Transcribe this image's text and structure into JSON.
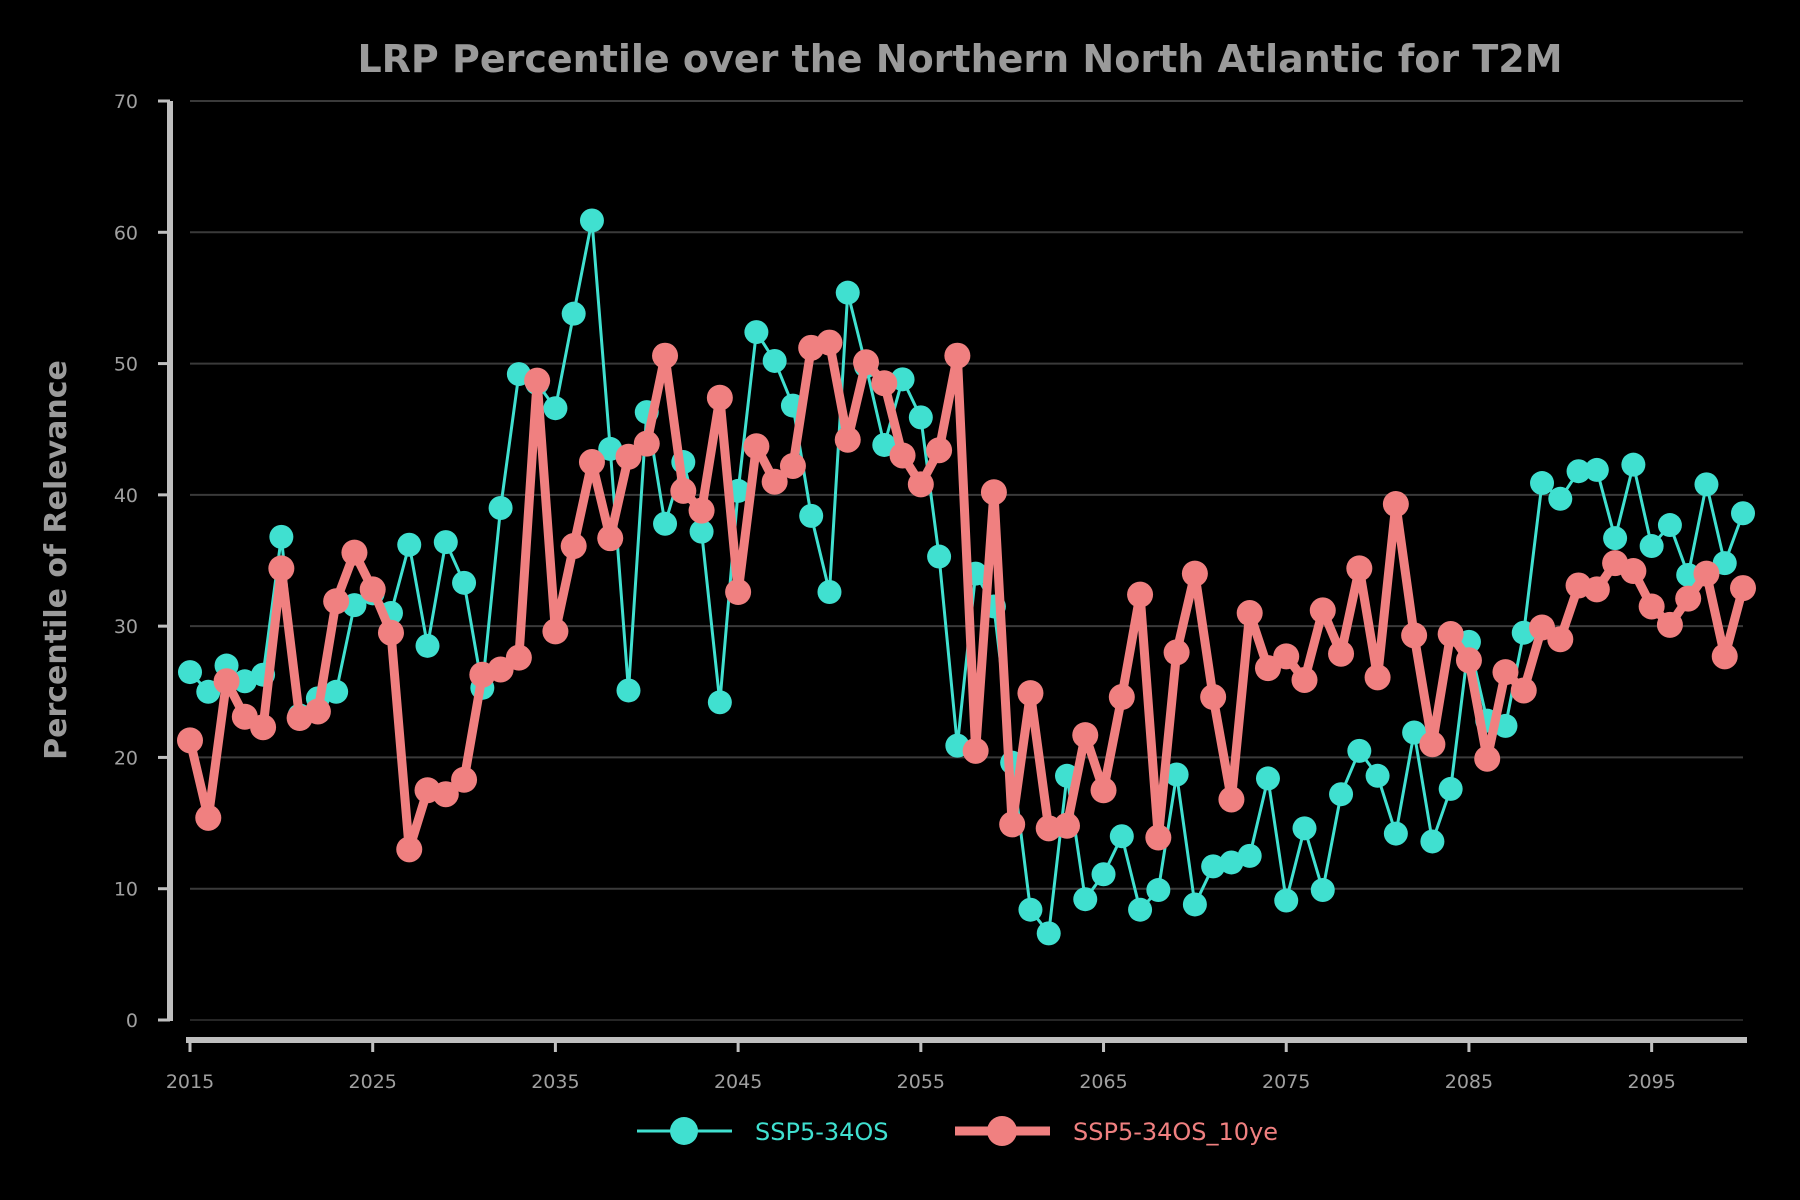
{
  "chart_data": {
    "type": "line",
    "title": "LRP Percentile over the Northern North Atlantic for T2M",
    "xlabel": "",
    "ylabel": "Percentile of Relevance",
    "xlim": [
      2015,
      2100
    ],
    "ylim": [
      0,
      70
    ],
    "x_ticks": [
      2015,
      2025,
      2035,
      2045,
      2055,
      2065,
      2075,
      2085,
      2095
    ],
    "y_ticks": [
      0,
      10,
      20,
      30,
      40,
      50,
      60,
      70
    ],
    "grid": "horizontal",
    "legend_position": "bottom-center",
    "x": [
      2015,
      2016,
      2017,
      2018,
      2019,
      2020,
      2021,
      2022,
      2023,
      2024,
      2025,
      2026,
      2027,
      2028,
      2029,
      2030,
      2031,
      2032,
      2033,
      2034,
      2035,
      2036,
      2037,
      2038,
      2039,
      2040,
      2041,
      2042,
      2043,
      2044,
      2045,
      2046,
      2047,
      2048,
      2049,
      2050,
      2051,
      2052,
      2053,
      2054,
      2055,
      2056,
      2057,
      2058,
      2059,
      2060,
      2061,
      2062,
      2063,
      2064,
      2065,
      2066,
      2067,
      2068,
      2069,
      2070,
      2071,
      2072,
      2073,
      2074,
      2075,
      2076,
      2077,
      2078,
      2079,
      2080,
      2081,
      2082,
      2083,
      2084,
      2085,
      2086,
      2087,
      2088,
      2089,
      2090,
      2091,
      2092,
      2093,
      2094,
      2095,
      2096,
      2097,
      2098,
      2099,
      2100
    ],
    "series": [
      {
        "name": "SSP5-34OS",
        "color": "#40e0d0",
        "values": [
          26.5,
          25.0,
          27.0,
          25.8,
          26.3,
          36.8,
          23.2,
          24.5,
          25.0,
          31.6,
          32.5,
          31.0,
          36.2,
          28.5,
          36.4,
          33.3,
          25.3,
          39.0,
          49.2,
          48.5,
          46.6,
          53.8,
          60.9,
          43.5,
          25.1,
          46.3,
          37.8,
          42.5,
          37.2,
          24.2,
          40.3,
          52.4,
          50.2,
          46.8,
          38.4,
          32.6,
          55.4,
          49.8,
          43.8,
          48.8,
          45.9,
          35.3,
          20.9,
          34.0,
          31.5,
          19.6,
          8.4,
          6.6,
          18.6,
          9.2,
          11.1,
          14.0,
          8.4,
          9.9,
          18.7,
          8.8,
          11.7,
          12.0,
          12.5,
          18.4,
          9.1,
          14.6,
          9.9,
          17.2,
          20.5,
          18.6,
          14.2,
          21.9,
          13.6,
          17.6,
          28.8,
          22.8,
          22.4,
          29.5,
          40.9,
          39.7,
          41.8,
          41.9,
          36.7,
          42.3,
          36.1,
          37.7,
          33.9,
          40.8,
          34.8,
          38.6
        ]
      },
      {
        "name": "SSP5-34OS_10ye",
        "color": "#f08080",
        "values": [
          21.3,
          15.4,
          25.8,
          23.1,
          22.3,
          34.4,
          23.0,
          23.5,
          31.9,
          35.6,
          32.8,
          29.5,
          13.0,
          17.5,
          17.2,
          18.3,
          26.3,
          26.7,
          27.6,
          48.7,
          29.6,
          36.1,
          42.5,
          36.7,
          42.9,
          43.9,
          50.6,
          40.3,
          38.8,
          47.4,
          32.6,
          43.7,
          41.0,
          42.2,
          51.2,
          51.6,
          44.2,
          50.1,
          48.5,
          43.0,
          40.8,
          43.4,
          50.6,
          20.5,
          40.2,
          14.9,
          24.9,
          14.6,
          14.8,
          21.7,
          17.5,
          24.6,
          32.4,
          13.9,
          28.0,
          34.0,
          24.6,
          16.8,
          31.0,
          26.8,
          27.7,
          25.9,
          31.2,
          27.9,
          34.4,
          26.1,
          39.3,
          29.3,
          21.0,
          29.4,
          27.4,
          19.9,
          26.5,
          25.1,
          29.9,
          29.0,
          33.1,
          32.8,
          34.8,
          34.2,
          31.5,
          30.1,
          32.1,
          34.0,
          27.7,
          32.9
        ]
      }
    ]
  }
}
